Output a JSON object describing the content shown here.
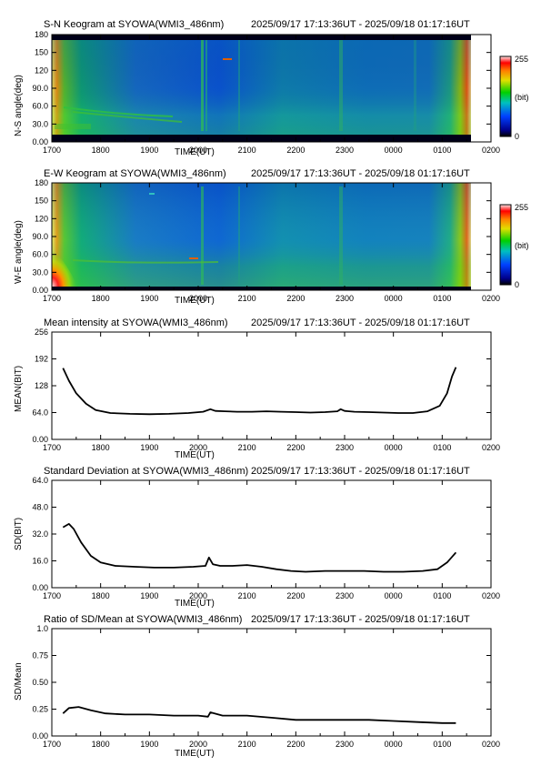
{
  "chart_data": [
    {
      "type": "heatmap",
      "id": "sn",
      "title": "S-N Keogram at SYOWA(WMI3_486nm)",
      "time_range": "2025/09/17 17:13:36UT - 2025/09/18 01:17:16UT",
      "xlabel": "TIME(UT)",
      "ylabel": "N-S angle(deg)",
      "x_ticks": [
        "1700",
        "1800",
        "1900",
        "2000",
        "2100",
        "2200",
        "2300",
        "0000",
        "0100",
        "0200"
      ],
      "y_ticks": [
        "0.00",
        "30.0",
        "60.0",
        "90.0",
        "120",
        "150",
        "180"
      ],
      "ylim": [
        0,
        180
      ],
      "colorbar": {
        "min_label": "0",
        "max_label": "255",
        "unit": "(bit)"
      }
    },
    {
      "type": "heatmap",
      "id": "ew",
      "title": "E-W Keogram at SYOWA(WMI3_486nm)",
      "time_range": "2025/09/17 17:13:36UT - 2025/09/18 01:17:16UT",
      "xlabel": "TIME(UT)",
      "ylabel": "W-E angle(deg)",
      "x_ticks": [
        "1700",
        "1800",
        "1900",
        "2000",
        "2100",
        "2200",
        "2300",
        "0000",
        "0100",
        "0200"
      ],
      "y_ticks": [
        "0.00",
        "30.0",
        "60.0",
        "90.0",
        "120",
        "150",
        "180"
      ],
      "ylim": [
        0,
        180
      ],
      "colorbar": {
        "min_label": "0",
        "max_label": "255",
        "unit": "(bit)"
      }
    },
    {
      "type": "line",
      "id": "mean",
      "title": "Mean intensity at SYOWA(WMI3_486nm)",
      "time_range": "2025/09/17 17:13:36UT - 2025/09/18 01:17:16UT",
      "xlabel": "TIME(UT)",
      "ylabel": "MEAN(BIT)",
      "x_ticks": [
        "1700",
        "1800",
        "1900",
        "2000",
        "2100",
        "2200",
        "2300",
        "0000",
        "0100",
        "0200"
      ],
      "y_ticks": [
        "0.00",
        "64.0",
        "128",
        "192",
        "256"
      ],
      "ylim": [
        0,
        256
      ],
      "xlim_hours": [
        17,
        26
      ],
      "x": [
        17.23,
        17.35,
        17.5,
        17.7,
        17.9,
        18.2,
        18.6,
        19.0,
        19.4,
        19.8,
        20.1,
        20.25,
        20.35,
        20.55,
        20.8,
        21.1,
        21.4,
        21.7,
        22.0,
        22.3,
        22.6,
        22.85,
        22.92,
        23.0,
        23.2,
        23.5,
        23.8,
        24.1,
        24.4,
        24.7,
        24.95,
        25.1,
        25.2,
        25.28
      ],
      "y": [
        170,
        140,
        110,
        85,
        70,
        63,
        61,
        60,
        61,
        63,
        66,
        72,
        68,
        67,
        66,
        66,
        67,
        66,
        65,
        64,
        65,
        67,
        72,
        68,
        66,
        65,
        64,
        63,
        63,
        67,
        80,
        110,
        150,
        172
      ]
    },
    {
      "type": "line",
      "id": "sd",
      "title": "Standard Deviation at SYOWA(WMI3_486nm)",
      "time_range": "2025/09/17 17:13:36UT - 2025/09/18 01:17:16UT",
      "xlabel": "TIME(UT)",
      "ylabel": "SD(BIT)",
      "x_ticks": [
        "1700",
        "1800",
        "1900",
        "2000",
        "2100",
        "2200",
        "2300",
        "0000",
        "0100",
        "0200"
      ],
      "y_ticks": [
        "0.00",
        "16.0",
        "32.0",
        "48.0",
        "64.0"
      ],
      "ylim": [
        0,
        64
      ],
      "xlim_hours": [
        17,
        26
      ],
      "x": [
        17.23,
        17.35,
        17.45,
        17.6,
        17.8,
        18.0,
        18.3,
        18.7,
        19.1,
        19.5,
        19.9,
        20.15,
        20.22,
        20.3,
        20.45,
        20.7,
        21.0,
        21.3,
        21.6,
        21.9,
        22.2,
        22.6,
        23.0,
        23.4,
        23.8,
        24.2,
        24.6,
        24.9,
        25.1,
        25.28
      ],
      "y": [
        36,
        38,
        35,
        27,
        19,
        15,
        13,
        12.5,
        12,
        12,
        12.5,
        13,
        18,
        14,
        13,
        13,
        13.5,
        12.5,
        11,
        10,
        9.5,
        10,
        10,
        10,
        9.5,
        9.5,
        10,
        11,
        15,
        21
      ]
    },
    {
      "type": "line",
      "id": "ratio",
      "title": "Ratio of SD/Mean at SYOWA(WMI3_486nm)",
      "time_range": "2025/09/17 17:13:36UT - 2025/09/18 01:17:16UT",
      "xlabel": "TIME(UT)",
      "ylabel": "SD/Mean",
      "x_ticks": [
        "1700",
        "1800",
        "1900",
        "2000",
        "2100",
        "2200",
        "2300",
        "0000",
        "0100",
        "0200"
      ],
      "y_ticks": [
        "0.00",
        "0.25",
        "0.50",
        "0.75",
        "1.0"
      ],
      "ylim": [
        0,
        1.0
      ],
      "xlim_hours": [
        17,
        26
      ],
      "x": [
        17.23,
        17.35,
        17.55,
        17.8,
        18.1,
        18.5,
        19.0,
        19.5,
        20.0,
        20.2,
        20.25,
        20.5,
        21.0,
        21.5,
        22.0,
        22.5,
        23.0,
        23.5,
        24.0,
        24.5,
        25.0,
        25.28
      ],
      "y": [
        0.21,
        0.26,
        0.27,
        0.24,
        0.21,
        0.2,
        0.2,
        0.19,
        0.19,
        0.18,
        0.22,
        0.19,
        0.19,
        0.17,
        0.15,
        0.15,
        0.15,
        0.15,
        0.14,
        0.13,
        0.12,
        0.12
      ]
    }
  ]
}
